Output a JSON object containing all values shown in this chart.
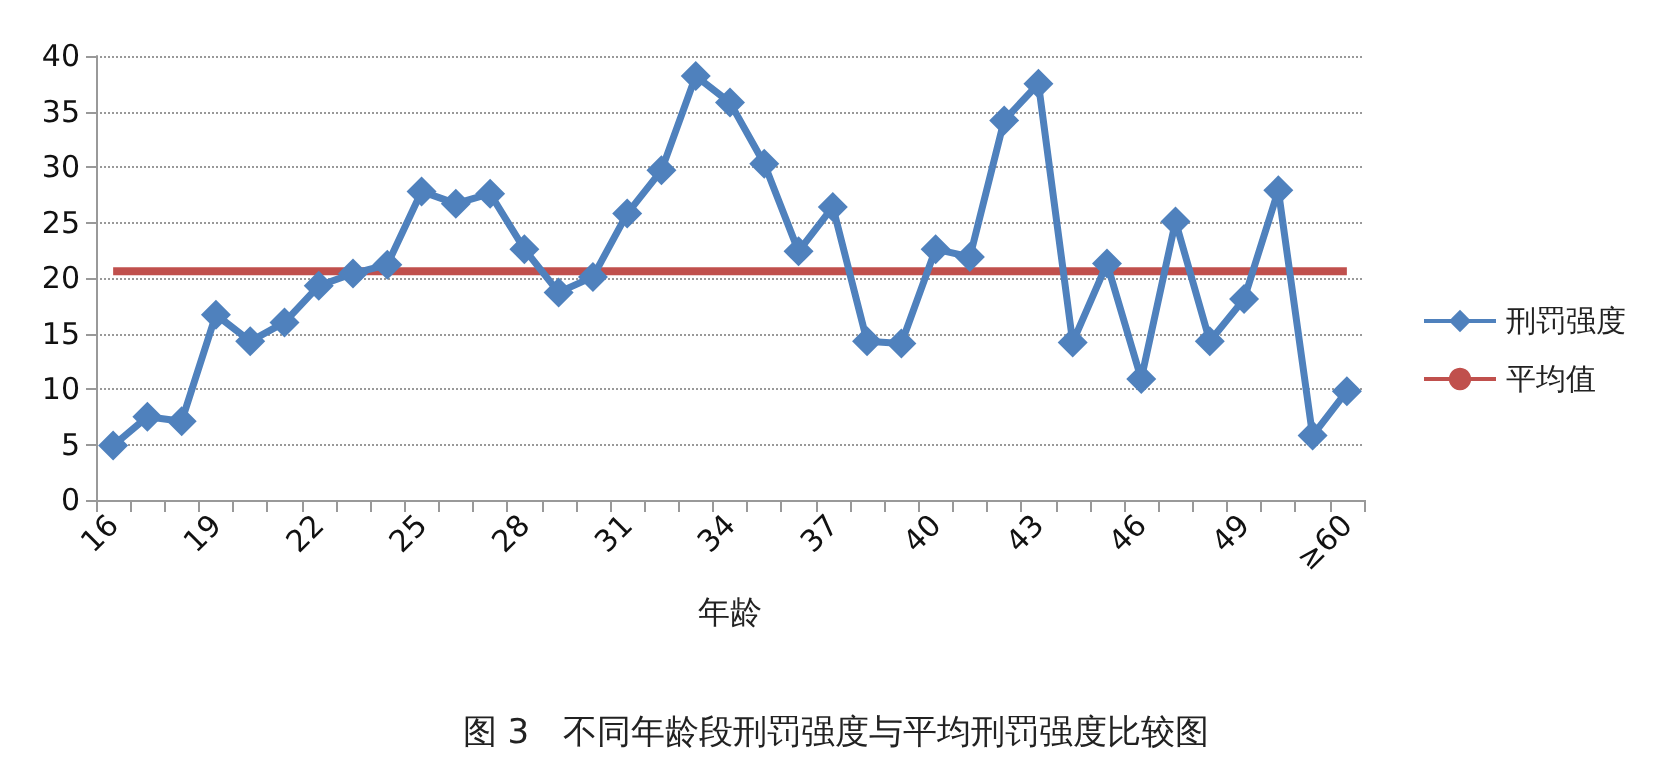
{
  "chart_data": {
    "type": "line",
    "title": "图 3　不同年龄段刑罚强度与平均刑罚强度比较图",
    "xlabel": "年龄",
    "categories": [
      "16",
      null,
      null,
      "19",
      null,
      null,
      "22",
      null,
      null,
      "25",
      null,
      null,
      "28",
      null,
      null,
      "31",
      null,
      null,
      "34",
      null,
      null,
      "37",
      null,
      null,
      "40",
      null,
      null,
      "43",
      null,
      null,
      "46",
      null,
      null,
      "49",
      null,
      null,
      "≥60"
    ],
    "series": [
      {
        "name": "刑罚强度",
        "color": "#4f81bd",
        "marker": "diamond",
        "values": [
          4.9,
          7.5,
          7.1,
          16.7,
          14.3,
          16.0,
          19.3,
          20.4,
          21.2,
          27.8,
          26.7,
          27.6,
          22.6,
          18.7,
          20.1,
          25.8,
          29.7,
          38.2,
          35.8,
          30.3,
          22.4,
          26.4,
          14.3,
          14.1,
          22.6,
          21.9,
          34.2,
          37.5,
          14.2,
          21.3,
          10.9,
          25.1,
          14.3,
          18.1,
          27.9,
          5.8,
          9.8
        ]
      },
      {
        "name": "平均值",
        "color": "#c0504d",
        "marker": "none",
        "values": [
          20.6,
          20.6,
          20.6,
          20.6,
          20.6,
          20.6,
          20.6,
          20.6,
          20.6,
          20.6,
          20.6,
          20.6,
          20.6,
          20.6,
          20.6,
          20.6,
          20.6,
          20.6,
          20.6,
          20.6,
          20.6,
          20.6,
          20.6,
          20.6,
          20.6,
          20.6,
          20.6,
          20.6,
          20.6,
          20.6,
          20.6,
          20.6,
          20.6,
          20.6,
          20.6,
          20.6,
          20.6
        ]
      }
    ],
    "ylim": [
      0,
      40
    ],
    "yticks": [
      0,
      5,
      10,
      15,
      20,
      25,
      30,
      35,
      40
    ],
    "grid": "y",
    "legend": "right"
  }
}
